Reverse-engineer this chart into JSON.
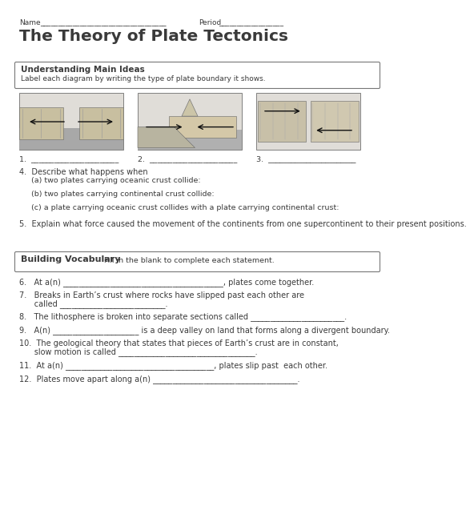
{
  "bg_color": "#ffffff",
  "text_color": "#3a3a3a",
  "name_line_left": "Name",
  "name_underline": "___________________________________",
  "period_label": "Period",
  "period_underline": "__________________",
  "title": "The Theory of Plate Tectonics",
  "section1_title": "Understanding Main Ideas",
  "section1_subtitle": "Label each diagram by writing the type of plate boundary it shows.",
  "label1": "1.  _______________________",
  "label2": "2.  _______________________",
  "label3": "3.  _______________________",
  "q4_head": "4.  Describe what happens when",
  "q4a": "     (a) two plates carrying oceanic crust collide:",
  "q4b": "     (b) two plates carrying continental crust collide:",
  "q4c": "     (c) a plate carrying oceanic crust collides with a plate carrying continental crust:",
  "q5": "5.  Explain what force caused the movement of the continents from one supercontinent to their present positions.",
  "section2_title": "Building Vocabulary",
  "section2_subtitle": "Fill in the blank to complete each statement.",
  "q6": "6.   At a(n) _________________________________________, plates come together.",
  "q7a": "7.   Breaks in Earth’s crust where rocks have slipped past each other are",
  "q7b": "      called ___________________________.",
  "q8": "8.   The lithosphere is broken into separate sections called ________________________.",
  "q9": "9.   A(n) ______________________ is a deep valley on land that forms along a divergent boundary.",
  "q10a": "10.  The geological theory that states that pieces of Earth’s crust are in constant,",
  "q10b": "      slow motion is called ___________________________________.",
  "q11": "11.  At a(n) ______________________________________, plates slip past  each other.",
  "q12": "12.  Plates move apart along a(n) _____________________________________."
}
